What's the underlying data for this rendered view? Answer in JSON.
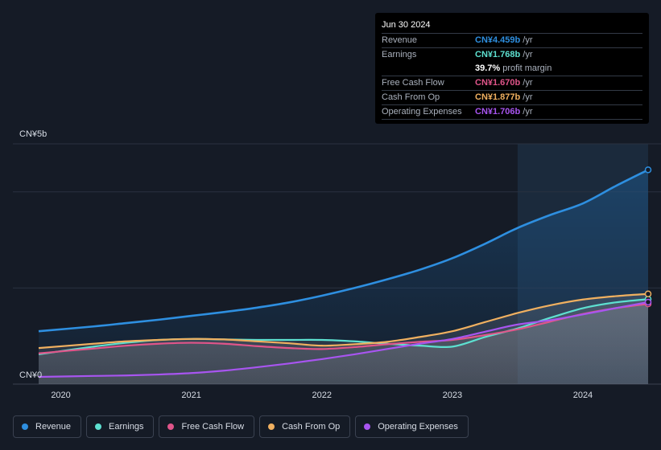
{
  "tooltip": {
    "date": "Jun 30 2024",
    "rows": [
      {
        "label": "Revenue",
        "value": "CN¥4.459b",
        "unit": "/yr",
        "color": "#2e8fe0"
      },
      {
        "label": "Earnings",
        "value": "CN¥1.768b",
        "unit": "/yr",
        "color": "#5de0d0"
      },
      {
        "label": "",
        "value": "39.7%",
        "unit": "profit margin",
        "color": "#ffffff"
      },
      {
        "label": "Free Cash Flow",
        "value": "CN¥1.670b",
        "unit": "/yr",
        "color": "#e0558a"
      },
      {
        "label": "Cash From Op",
        "value": "CN¥1.877b",
        "unit": "/yr",
        "color": "#f0b060"
      },
      {
        "label": "Operating Expenses",
        "value": "CN¥1.706b",
        "unit": "/yr",
        "color": "#a855f0"
      }
    ]
  },
  "legend": [
    {
      "label": "Revenue",
      "color": "#2e8fe0"
    },
    {
      "label": "Earnings",
      "color": "#5de0d0"
    },
    {
      "label": "Free Cash Flow",
      "color": "#e0558a"
    },
    {
      "label": "Cash From Op",
      "color": "#f0b060"
    },
    {
      "label": "Operating Expenses",
      "color": "#a855f0"
    }
  ],
  "chart_data": {
    "type": "area",
    "title": "",
    "xlabel": "",
    "ylabel": "",
    "y_tick_labels": [
      "CN¥5b",
      "CN¥0"
    ],
    "x_tick_labels": [
      "2020",
      "2021",
      "2022",
      "2023",
      "2024"
    ],
    "ylim": [
      0,
      5
    ],
    "xlim": [
      2019.83,
      2024.5
    ],
    "grid": true,
    "highlight_start": 2023.5,
    "x": [
      2019.83,
      2020.25,
      2020.5,
      2020.75,
      2021.0,
      2021.25,
      2021.5,
      2021.75,
      2022.0,
      2022.25,
      2022.5,
      2022.75,
      2023.0,
      2023.25,
      2023.5,
      2023.75,
      2024.0,
      2024.25,
      2024.5
    ],
    "series": [
      {
        "name": "Revenue",
        "color": "#2e8fe0",
        "values": [
          1.1,
          1.2,
          1.27,
          1.34,
          1.42,
          1.5,
          1.59,
          1.7,
          1.84,
          2.0,
          2.18,
          2.38,
          2.62,
          2.92,
          3.25,
          3.52,
          3.76,
          4.12,
          4.459
        ]
      },
      {
        "name": "Earnings",
        "color": "#5de0d0",
        "values": [
          0.62,
          0.78,
          0.86,
          0.92,
          0.94,
          0.93,
          0.92,
          0.92,
          0.92,
          0.89,
          0.84,
          0.8,
          0.78,
          0.98,
          1.16,
          1.38,
          1.58,
          1.7,
          1.768
        ]
      },
      {
        "name": "Free Cash Flow",
        "color": "#e0558a",
        "values": [
          0.64,
          0.74,
          0.8,
          0.84,
          0.86,
          0.84,
          0.79,
          0.75,
          0.73,
          0.77,
          0.83,
          0.88,
          0.92,
          1.02,
          1.14,
          1.3,
          1.46,
          1.58,
          1.67
        ]
      },
      {
        "name": "Cash From Op",
        "color": "#f0b060",
        "values": [
          0.75,
          0.84,
          0.89,
          0.92,
          0.94,
          0.93,
          0.89,
          0.85,
          0.8,
          0.83,
          0.88,
          0.98,
          1.1,
          1.29,
          1.48,
          1.64,
          1.76,
          1.83,
          1.877
        ]
      },
      {
        "name": "Operating Expenses",
        "color": "#a855f0",
        "values": [
          0.15,
          0.17,
          0.18,
          0.2,
          0.23,
          0.28,
          0.35,
          0.43,
          0.52,
          0.62,
          0.73,
          0.84,
          0.94,
          1.09,
          1.24,
          1.33,
          1.45,
          1.58,
          1.706
        ]
      }
    ]
  }
}
